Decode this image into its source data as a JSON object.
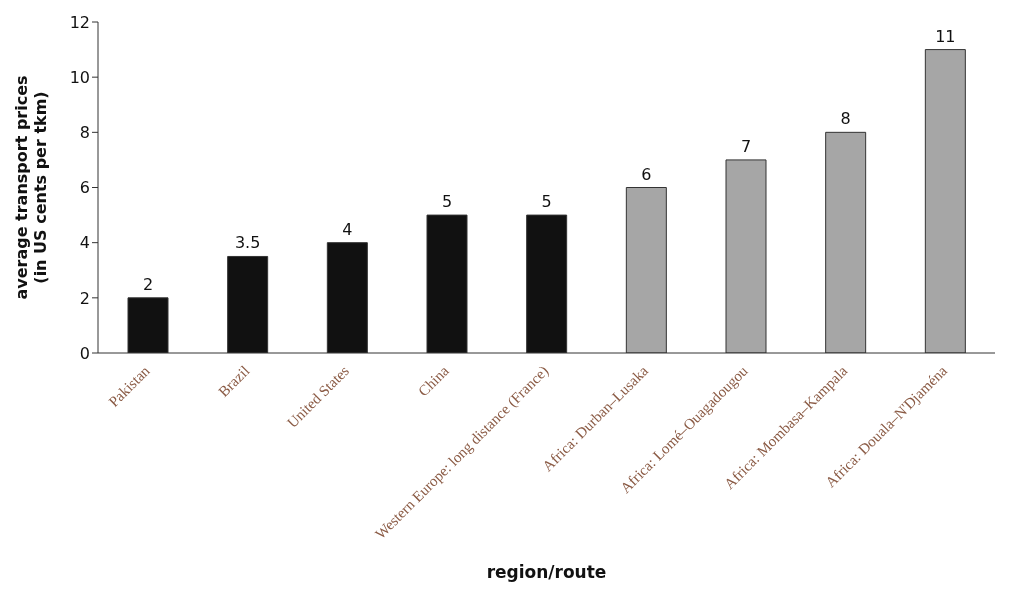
{
  "chart_data": {
    "type": "bar",
    "xlabel": "region/route",
    "ylabel": "average transport prices (in US cents per tkm)",
    "categories": [
      "Pakistan",
      "Brazil",
      "United States",
      "China",
      "Western Europe: long distance (France)",
      "Africa: Durban–Lusaka",
      "Africa: Lomé–Ouagadougou",
      "Africa: Mombasa–Kampala",
      "Africa: Douala–N'Djaména"
    ],
    "values": [
      2,
      3.5,
      4,
      5,
      5,
      6,
      7,
      8,
      11
    ],
    "colors": [
      "#111111",
      "#111111",
      "#111111",
      "#111111",
      "#111111",
      "#a6a6a6",
      "#a6a6a6",
      "#a6a6a6",
      "#a6a6a6"
    ],
    "ylim": [
      0,
      12
    ],
    "yticks": [
      0,
      2,
      4,
      6,
      8,
      10,
      12
    ],
    "grid": false,
    "legend": false,
    "data_labels": true
  }
}
